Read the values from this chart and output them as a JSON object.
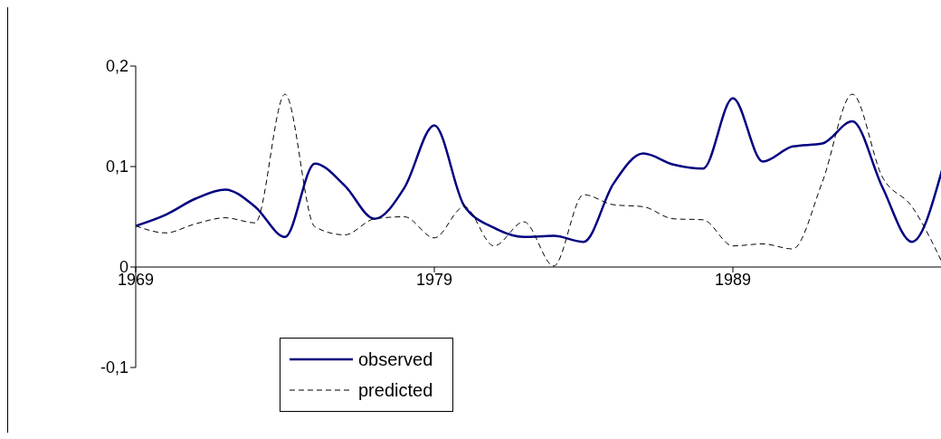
{
  "chart_data": {
    "type": "line",
    "x": [
      1969,
      1970,
      1971,
      1972,
      1973,
      1974,
      1975,
      1976,
      1977,
      1978,
      1979,
      1980,
      1981,
      1982,
      1983,
      1984,
      1985,
      1986,
      1987,
      1988,
      1989,
      1990,
      1991,
      1992,
      1993,
      1994,
      1995,
      1996
    ],
    "series": [
      {
        "name": "observed",
        "color": "#000080",
        "line_style": "solid",
        "values": [
          0.041,
          0.052,
          0.068,
          0.077,
          0.06,
          0.03,
          0.103,
          0.081,
          0.048,
          0.079,
          0.141,
          0.061,
          0.039,
          0.03,
          0.031,
          0.025,
          0.083,
          0.113,
          0.102,
          0.098,
          0.168,
          0.105,
          0.12,
          0.123,
          0.145,
          0.08,
          0.025,
          0.096
        ]
      },
      {
        "name": "predicted",
        "color": "#000000",
        "line_style": "dashed",
        "values": [
          0.041,
          0.034,
          0.043,
          0.049,
          0.044,
          0.172,
          0.04,
          0.032,
          0.048,
          0.05,
          0.029,
          0.06,
          0.021,
          0.045,
          0.001,
          0.072,
          0.062,
          0.06,
          0.048,
          0.047,
          0.021,
          0.023,
          0.018,
          0.085,
          0.172,
          0.09,
          0.06,
          0.005
        ]
      }
    ],
    "xlim": [
      1969,
      1996
    ],
    "xticks": [
      1969,
      1979,
      1989
    ],
    "ylim": [
      -0.1,
      0.2
    ],
    "yticks": [
      {
        "value": -0.1,
        "label": "-0,1"
      },
      {
        "value": 0,
        "label": "0"
      },
      {
        "value": 0.1,
        "label": "0,1"
      },
      {
        "value": 0.2,
        "label": "0,2"
      }
    ],
    "marker": "none",
    "legend": "bottom left"
  }
}
